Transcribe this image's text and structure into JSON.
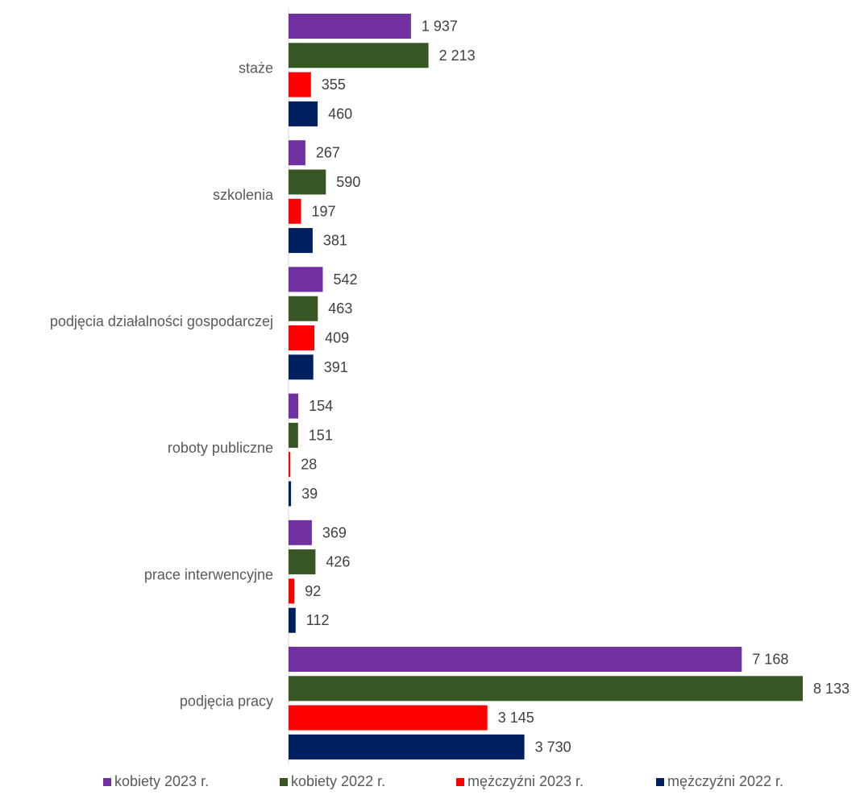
{
  "chart_data": {
    "type": "bar",
    "orientation": "horizontal",
    "categories": [
      "staże",
      "szkolenia",
      "podjęcia działalności gospodarczej",
      "roboty publiczne",
      "prace interwencyjne",
      "podjęcia pracy"
    ],
    "series": [
      {
        "name": "kobiety 2023 r.",
        "color": "#7030A0",
        "values": [
          1937,
          267,
          542,
          154,
          369,
          7168
        ],
        "labels": [
          "1 937",
          "267",
          "542",
          "154",
          "369",
          "7 168"
        ]
      },
      {
        "name": "kobiety 2022 r.",
        "color": "#375623",
        "values": [
          2213,
          590,
          463,
          151,
          426,
          8133
        ],
        "labels": [
          "2 213",
          "590",
          "463",
          "151",
          "426",
          "8 133"
        ]
      },
      {
        "name": "mężczyźni 2023 r.",
        "color": "#FF0000",
        "values": [
          355,
          197,
          409,
          28,
          92,
          3145
        ],
        "labels": [
          "355",
          "197",
          "409",
          "28",
          "92",
          "3 145"
        ]
      },
      {
        "name": "mężczyźni 2022 r.",
        "color": "#002060",
        "values": [
          460,
          381,
          391,
          39,
          112,
          3730
        ],
        "labels": [
          "460",
          "381",
          "391",
          "39",
          "112",
          "3 730"
        ]
      }
    ],
    "xlim": [
      0,
      8133
    ],
    "grid": false,
    "legend_position": "bottom"
  }
}
